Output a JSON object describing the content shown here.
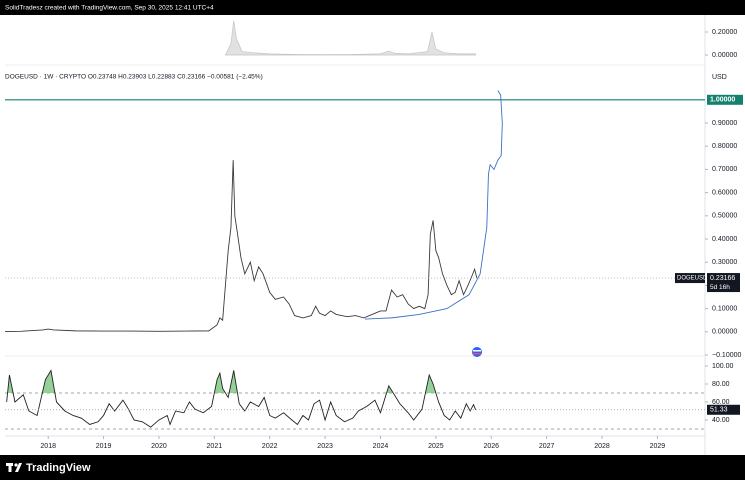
{
  "header": "SolidTradesz created with TradingView.com, Sep 30, 2025 12:41 UTC+4",
  "footer": "TradingView",
  "chart_data": [
    {
      "type": "line",
      "legend": "DOGEUSD · 1W · CRYPTO  O0.23748  H0.23903  L0.22883  C0.23166  −0.00581 (−2.45%)",
      "currency": "USD",
      "symbol": "DOGEUSD",
      "countdown": "5d 16h",
      "last_tag": true,
      "xlim": [
        2017.22,
        2029.86
      ],
      "xticks": [
        2018,
        2019,
        2020,
        2021,
        2022,
        2023,
        2024,
        2025,
        2026,
        2027,
        2028,
        2029
      ],
      "ylim": [
        -0.1,
        1.15
      ],
      "yticks": [
        {
          "value": -0.1,
          "label": "−0.10000"
        },
        {
          "value": 0,
          "label": "0.00000"
        },
        {
          "value": 0.1,
          "label": "0.10000"
        },
        {
          "value": 0.2,
          "label": "0.20000"
        },
        {
          "value": 0.3,
          "label": "0.30000"
        },
        {
          "value": 0.4,
          "label": "0.40000"
        },
        {
          "value": 0.5,
          "label": "0.50000"
        },
        {
          "value": 0.6,
          "label": "0.60000"
        },
        {
          "value": 0.7,
          "label": "0.70000"
        },
        {
          "value": 0.8,
          "label": "0.80000"
        },
        {
          "value": 0.9,
          "label": "0.90000"
        }
      ],
      "hline": {
        "value": 1,
        "label": "1.00000",
        "color": "#14806e"
      },
      "series": [
        {
          "color": "#3a3a3a",
          "x": [
            2017.22,
            2017.5,
            2017.9,
            2018.0,
            2018.1,
            2018.5,
            2019.0,
            2019.5,
            2020.0,
            2020.5,
            2020.9,
            2021.05,
            2021.1,
            2021.15,
            2021.25,
            2021.3,
            2021.34,
            2021.37,
            2021.42,
            2021.48,
            2021.55,
            2021.65,
            2021.72,
            2021.8,
            2021.88,
            2022.0,
            2022.1,
            2022.25,
            2022.35,
            2022.45,
            2022.6,
            2022.75,
            2022.83,
            2022.9,
            2023.0,
            2023.1,
            2023.2,
            2023.4,
            2023.55,
            2023.7,
            2023.85,
            2024.0,
            2024.1,
            2024.2,
            2024.3,
            2024.4,
            2024.5,
            2024.6,
            2024.7,
            2024.8,
            2024.86,
            2024.9,
            2024.95,
            2025.0,
            2025.05,
            2025.12,
            2025.2,
            2025.28,
            2025.35,
            2025.42,
            2025.5,
            2025.58,
            2025.65,
            2025.7,
            2025.74
          ],
          "values": [
            0.001,
            0.002,
            0.008,
            0.012,
            0.008,
            0.004,
            0.003,
            0.003,
            0.002,
            0.003,
            0.004,
            0.03,
            0.06,
            0.05,
            0.35,
            0.45,
            0.74,
            0.5,
            0.42,
            0.32,
            0.25,
            0.3,
            0.22,
            0.28,
            0.25,
            0.17,
            0.14,
            0.15,
            0.12,
            0.07,
            0.06,
            0.07,
            0.11,
            0.08,
            0.07,
            0.09,
            0.075,
            0.065,
            0.07,
            0.06,
            0.075,
            0.09,
            0.09,
            0.18,
            0.15,
            0.16,
            0.12,
            0.1,
            0.11,
            0.1,
            0.16,
            0.42,
            0.48,
            0.35,
            0.32,
            0.25,
            0.2,
            0.16,
            0.17,
            0.22,
            0.16,
            0.2,
            0.24,
            0.27,
            0.23166
          ]
        },
        {
          "color": "#3d6fc4",
          "x": [
            2023.72,
            2024.2,
            2024.7,
            2025.2,
            2025.6,
            2025.8,
            2025.92,
            2025.95,
            2025.98,
            2026.05,
            2026.12,
            2026.18,
            2026.2,
            2026.17,
            2026.12
          ],
          "values": [
            0.055,
            0.06,
            0.075,
            0.1,
            0.16,
            0.25,
            0.45,
            0.68,
            0.72,
            0.7,
            0.74,
            0.76,
            0.9,
            1.02,
            1.04
          ]
        }
      ]
    },
    {
      "type": "line",
      "last_tag": true,
      "xlim": [
        2017.22,
        2029.86
      ],
      "ylim": [
        24.4,
        108.9
      ],
      "yticks": [
        {
          "value": 40,
          "label": "40.00"
        },
        {
          "value": 60,
          "label": "60.00"
        },
        {
          "value": 80,
          "label": "80.00"
        },
        {
          "value": 100,
          "label": "100.00"
        }
      ],
      "levels": [
        70,
        30
      ],
      "level_fill": "#7cc47f",
      "series": [
        {
          "color": "#222222",
          "x": [
            2017.25,
            2017.3,
            2017.4,
            2017.55,
            2017.65,
            2017.8,
            2017.95,
            2018.05,
            2018.15,
            2018.3,
            2018.45,
            2018.6,
            2018.75,
            2018.9,
            2019.0,
            2019.1,
            2019.2,
            2019.35,
            2019.45,
            2019.55,
            2019.7,
            2019.85,
            2020.0,
            2020.15,
            2020.2,
            2020.3,
            2020.45,
            2020.55,
            2020.65,
            2020.8,
            2020.95,
            2021.05,
            2021.1,
            2021.15,
            2021.25,
            2021.35,
            2021.45,
            2021.55,
            2021.65,
            2021.8,
            2021.9,
            2022.0,
            2022.1,
            2022.25,
            2022.4,
            2022.5,
            2022.6,
            2022.7,
            2022.8,
            2022.9,
            2023.0,
            2023.1,
            2023.2,
            2023.35,
            2023.5,
            2023.6,
            2023.75,
            2023.9,
            2024.0,
            2024.15,
            2024.25,
            2024.35,
            2024.5,
            2024.6,
            2024.75,
            2024.88,
            2024.95,
            2025.05,
            2025.15,
            2025.25,
            2025.35,
            2025.45,
            2025.55,
            2025.62,
            2025.68,
            2025.72
          ],
          "values": [
            60,
            90,
            60,
            68,
            50,
            45,
            85,
            95,
            60,
            50,
            45,
            42,
            35,
            38,
            45,
            58,
            50,
            62,
            52,
            40,
            38,
            32,
            40,
            45,
            35,
            50,
            48,
            60,
            52,
            48,
            55,
            85,
            92,
            75,
            65,
            95,
            58,
            50,
            60,
            55,
            65,
            45,
            42,
            48,
            40,
            35,
            45,
            40,
            58,
            62,
            40,
            60,
            45,
            38,
            42,
            50,
            55,
            62,
            48,
            78,
            68,
            58,
            48,
            40,
            52,
            90,
            80,
            60,
            45,
            40,
            50,
            42,
            58,
            50,
            57,
            51.33
          ]
        }
      ]
    },
    {
      "type": "area",
      "xlim": [
        2017.22,
        2029.86
      ],
      "ylim": [
        -0.087,
        0.348
      ],
      "yticks": [
        {
          "value": 0,
          "label": "0.00000"
        },
        {
          "value": 0.2,
          "label": "0.20000"
        }
      ],
      "series": [
        {
          "color": "#c4c4c4",
          "x": [
            2021.2,
            2021.3,
            2021.35,
            2021.4,
            2021.5,
            2021.7,
            2022.0,
            2022.5,
            2023.0,
            2023.5,
            2024.0,
            2024.15,
            2024.25,
            2024.5,
            2024.85,
            2024.93,
            2025.0,
            2025.15,
            2025.4,
            2025.72
          ],
          "values": [
            0,
            0.1,
            0.3,
            0.14,
            0.03,
            0.02,
            0.01,
            0.005,
            0.003,
            0.005,
            0.01,
            0.035,
            0.015,
            0.01,
            0.03,
            0.2,
            0.05,
            0.02,
            0.01,
            0.01
          ]
        }
      ]
    }
  ]
}
